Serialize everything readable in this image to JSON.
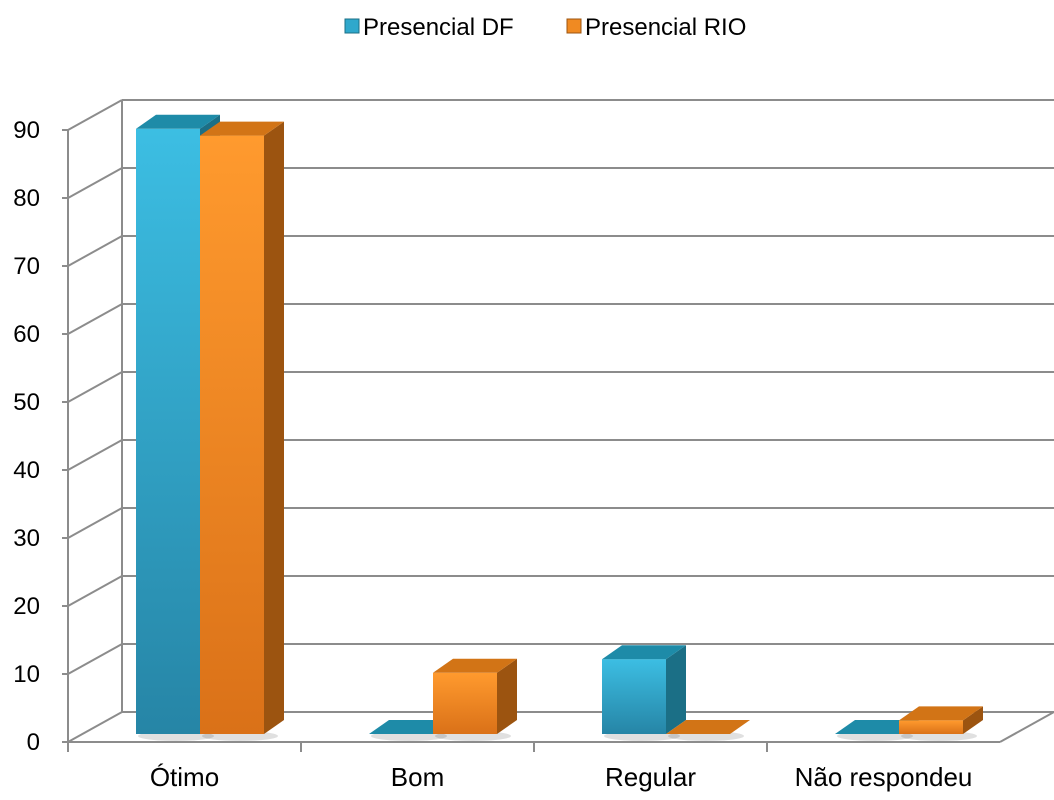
{
  "chart_data": {
    "type": "bar",
    "title": "",
    "xlabel": "",
    "ylabel": "",
    "categories": [
      "Ótimo",
      "Bom",
      "Regular",
      "Não respondeu"
    ],
    "series": [
      {
        "name": "Presencial DF",
        "values": [
          89,
          0,
          11,
          0
        ],
        "color": "#2FA8CC",
        "top_color": "#1E8BA8",
        "side_color": "#1B6F86"
      },
      {
        "name": "Presencial RIO",
        "values": [
          88,
          9,
          0,
          2
        ],
        "color": "#F08A22",
        "top_color": "#D27416",
        "side_color": "#9C5410"
      }
    ],
    "ylim": [
      0,
      90
    ],
    "yticks": [
      0,
      10,
      20,
      30,
      40,
      50,
      60,
      70,
      80,
      90
    ],
    "grid": true,
    "legend_position": "top-center",
    "style": "3d-clustered-column"
  }
}
